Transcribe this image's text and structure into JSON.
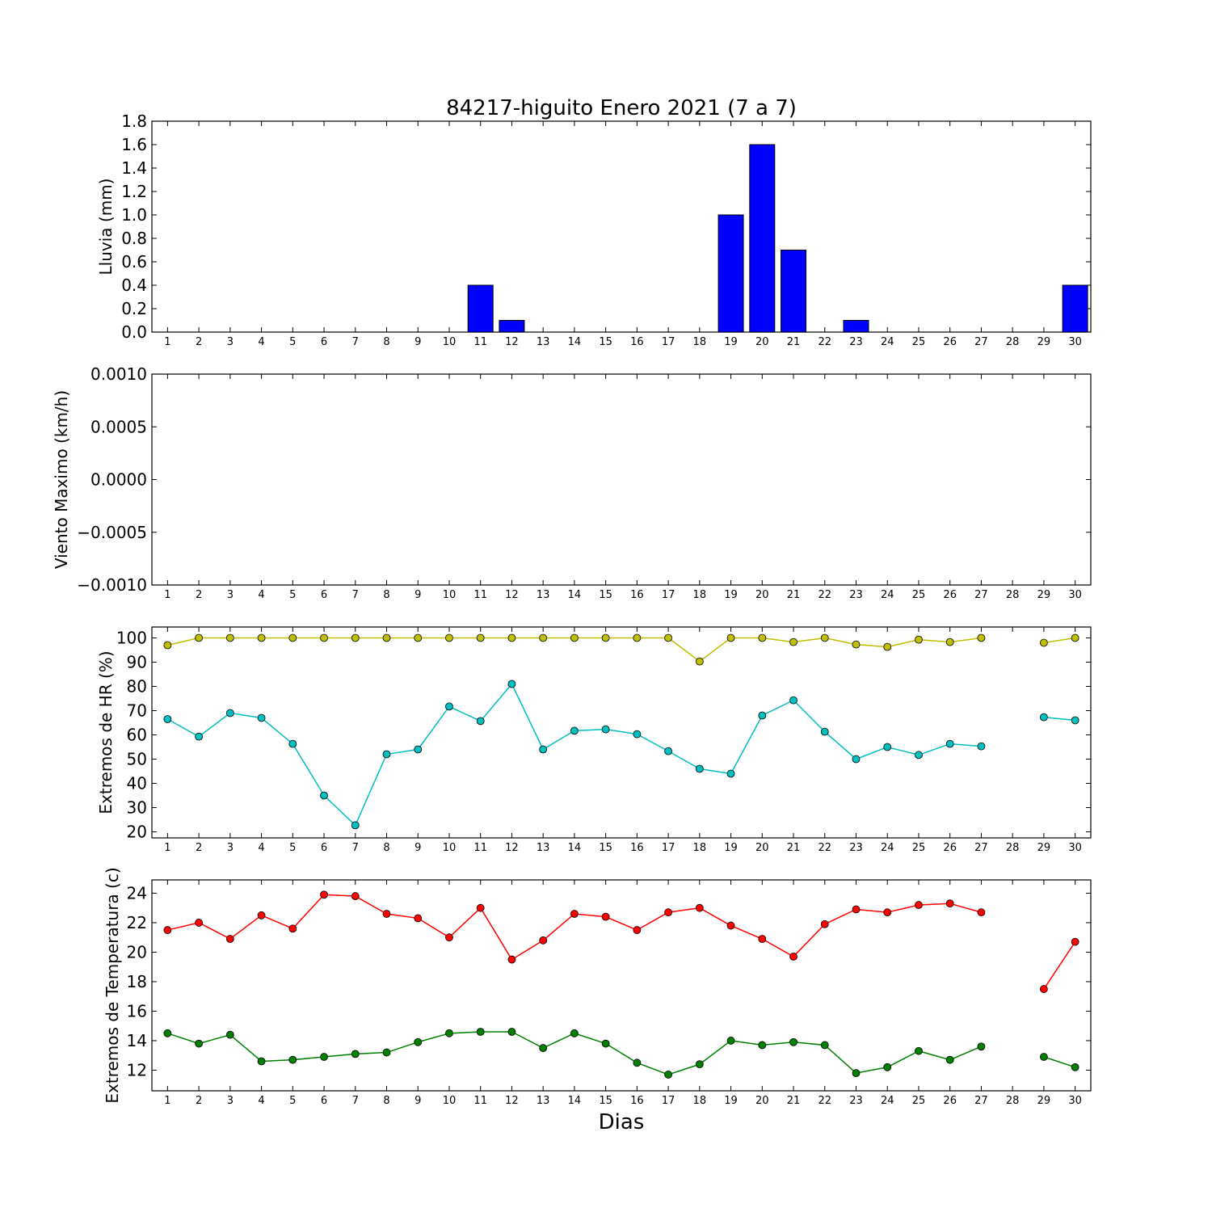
{
  "chart_data": {
    "title": "84217-higuito Enero 2021  (7 a 7)",
    "xlabel": "Dias",
    "days": [
      1,
      2,
      3,
      4,
      5,
      6,
      7,
      8,
      9,
      10,
      11,
      12,
      13,
      14,
      15,
      16,
      17,
      18,
      19,
      20,
      21,
      22,
      23,
      24,
      25,
      26,
      27,
      28,
      29,
      30
    ],
    "panels": [
      {
        "type": "bar",
        "ylabel": "Lluvia (mm)",
        "ylim": [
          0,
          1.8
        ],
        "yticks": [
          "0.0",
          "0.2",
          "0.4",
          "0.6",
          "0.8",
          "1.0",
          "1.2",
          "1.4",
          "1.6",
          "1.8"
        ],
        "series": [
          {
            "color": "#0000ff",
            "values": [
              0,
              0,
              0,
              0,
              0,
              0,
              0,
              0,
              0,
              0,
              0.4,
              0.1,
              0,
              0,
              0,
              0,
              0,
              0,
              1.0,
              1.6,
              0.7,
              0,
              0.1,
              0,
              0,
              0,
              0,
              0,
              0,
              0.4
            ]
          }
        ]
      },
      {
        "type": "line",
        "ylabel": "Viento Maximo (km/h)",
        "ylim": [
          -0.001,
          0.001
        ],
        "yticks": [
          "−0.0010",
          "−0.0005",
          "0.0000",
          "0.0005",
          "0.0010"
        ],
        "series": []
      },
      {
        "type": "line",
        "ylabel": "Extremos de HR (%)",
        "ylim": [
          17.5,
          104.5
        ],
        "yticks": [
          "20",
          "30",
          "40",
          "50",
          "60",
          "70",
          "80",
          "90",
          "100"
        ],
        "series": [
          {
            "color": "#bfbf00",
            "values": [
              97,
              100,
              100,
              100,
              100,
              100,
              100,
              100,
              100,
              100,
              100,
              100,
              100,
              100,
              100,
              100,
              100,
              90.3,
              100,
              100,
              98.3,
              100,
              97.3,
              96.3,
              99.3,
              98.3,
              100,
              null,
              98,
              100
            ]
          },
          {
            "color": "#00bfbf",
            "values": [
              66.5,
              59.3,
              69,
              67,
              56.3,
              35,
              22.7,
              52,
              54,
              71.7,
              65.7,
              81,
              54,
              61.7,
              62.3,
              60.3,
              53.3,
              46,
              44,
              68,
              74.3,
              61.3,
              50,
              55,
              51.7,
              56.3,
              55.3,
              null,
              67.3,
              66
            ]
          }
        ]
      },
      {
        "type": "line",
        "ylabel": "Extremos de Temperatura (c)",
        "ylim": [
          10.6,
          24.9
        ],
        "yticks": [
          "12",
          "14",
          "16",
          "18",
          "20",
          "22",
          "24"
        ],
        "series": [
          {
            "color": "#ff0000",
            "values": [
              21.5,
              22,
              20.9,
              22.5,
              21.6,
              23.9,
              23.8,
              22.6,
              22.3,
              21,
              23,
              19.5,
              20.8,
              22.6,
              22.4,
              21.5,
              22.7,
              23,
              21.8,
              20.9,
              19.7,
              21.9,
              22.9,
              22.7,
              23.2,
              23.3,
              22.7,
              null,
              17.5,
              20.7
            ]
          },
          {
            "color": "#007f00",
            "values": [
              14.5,
              13.8,
              14.4,
              12.6,
              12.7,
              12.9,
              13.1,
              13.2,
              13.9,
              14.5,
              14.6,
              14.6,
              13.5,
              14.5,
              13.8,
              12.5,
              11.7,
              12.4,
              14,
              13.7,
              13.9,
              13.7,
              11.8,
              12.2,
              13.3,
              12.7,
              13.6,
              null,
              12.9,
              12.2
            ]
          }
        ]
      }
    ]
  }
}
